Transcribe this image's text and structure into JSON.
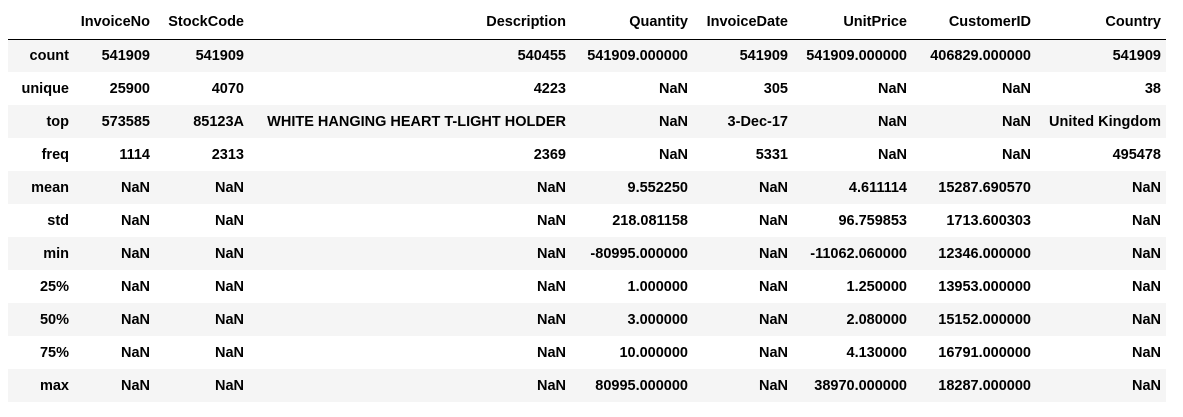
{
  "table": {
    "columns": [
      "",
      "InvoiceNo",
      "StockCode",
      "Description",
      "Quantity",
      "InvoiceDate",
      "UnitPrice",
      "CustomerID",
      "Country"
    ],
    "rows": [
      [
        "count",
        "541909",
        "541909",
        "540455",
        "541909.000000",
        "541909",
        "541909.000000",
        "406829.000000",
        "541909"
      ],
      [
        "unique",
        "25900",
        "4070",
        "4223",
        "NaN",
        "305",
        "NaN",
        "NaN",
        "38"
      ],
      [
        "top",
        "573585",
        "85123A",
        "WHITE HANGING HEART T-LIGHT HOLDER",
        "NaN",
        "3-Dec-17",
        "NaN",
        "NaN",
        "United Kingdom"
      ],
      [
        "freq",
        "1114",
        "2313",
        "2369",
        "NaN",
        "5331",
        "NaN",
        "NaN",
        "495478"
      ],
      [
        "mean",
        "NaN",
        "NaN",
        "NaN",
        "9.552250",
        "NaN",
        "4.611114",
        "15287.690570",
        "NaN"
      ],
      [
        "std",
        "NaN",
        "NaN",
        "NaN",
        "218.081158",
        "NaN",
        "96.759853",
        "1713.600303",
        "NaN"
      ],
      [
        "min",
        "NaN",
        "NaN",
        "NaN",
        "-80995.000000",
        "NaN",
        "-11062.060000",
        "12346.000000",
        "NaN"
      ],
      [
        "25%",
        "NaN",
        "NaN",
        "NaN",
        "1.000000",
        "NaN",
        "1.250000",
        "13953.000000",
        "NaN"
      ],
      [
        "50%",
        "NaN",
        "NaN",
        "NaN",
        "3.000000",
        "NaN",
        "2.080000",
        "15152.000000",
        "NaN"
      ],
      [
        "75%",
        "NaN",
        "NaN",
        "NaN",
        "10.000000",
        "NaN",
        "4.130000",
        "16791.000000",
        "NaN"
      ],
      [
        "max",
        "NaN",
        "NaN",
        "NaN",
        "80995.000000",
        "NaN",
        "38970.000000",
        "18287.000000",
        "NaN"
      ]
    ]
  }
}
